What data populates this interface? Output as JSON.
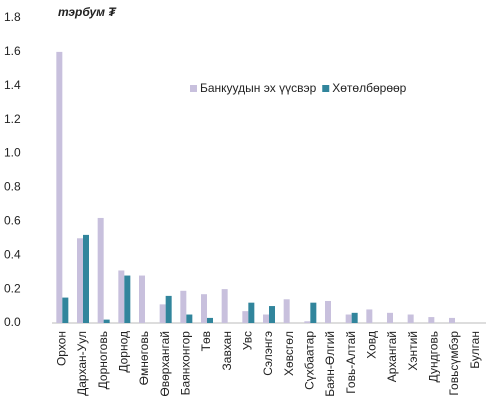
{
  "chart_data": {
    "type": "bar",
    "title": "тэрбум ₮",
    "categories": [
      "Орхон",
      "Дархан-Уул",
      "Дорноговь",
      "Дорнод",
      "Өмнөговь",
      "Өвөрхангай",
      "Баянхонгор",
      "Төв",
      "Завхан",
      "Увс",
      "Сэлэнгэ",
      "Хөвсгөл",
      "Сүхбаатар",
      "Баян-Өлгий",
      "Говь-Алтай",
      "Ховд",
      "Архангай",
      "Хэнтий",
      "Дундговь",
      "Говьсүмбэр",
      "Булган"
    ],
    "series": [
      {
        "name": "Банкуудын эх үүсвэр",
        "color": "#c8c0dd",
        "values": [
          1.6,
          0.5,
          0.62,
          0.31,
          0.28,
          0.11,
          0.19,
          0.17,
          0.2,
          0.07,
          0.05,
          0.14,
          0.01,
          0.13,
          0.05,
          0.08,
          0.06,
          0.05,
          0.035,
          0.03,
          0
        ]
      },
      {
        "name": "Хөтөлбөрөөр",
        "color": "#31859c",
        "values": [
          0.15,
          0.52,
          0.02,
          0.28,
          0,
          0.16,
          0.05,
          0.03,
          0,
          0.12,
          0.1,
          0,
          0.12,
          0,
          0.06,
          0,
          0,
          0,
          0,
          0,
          0
        ]
      }
    ],
    "ylim": [
      0,
      1.8
    ],
    "yticks": [
      {
        "value": 0,
        "label": "0.0"
      },
      0.2,
      0.4,
      0.6,
      0.8,
      {
        "value": 1,
        "label": "1.0"
      },
      1.2,
      1.4,
      1.6,
      1.8
    ],
    "legend": "upper right",
    "grid": false
  }
}
